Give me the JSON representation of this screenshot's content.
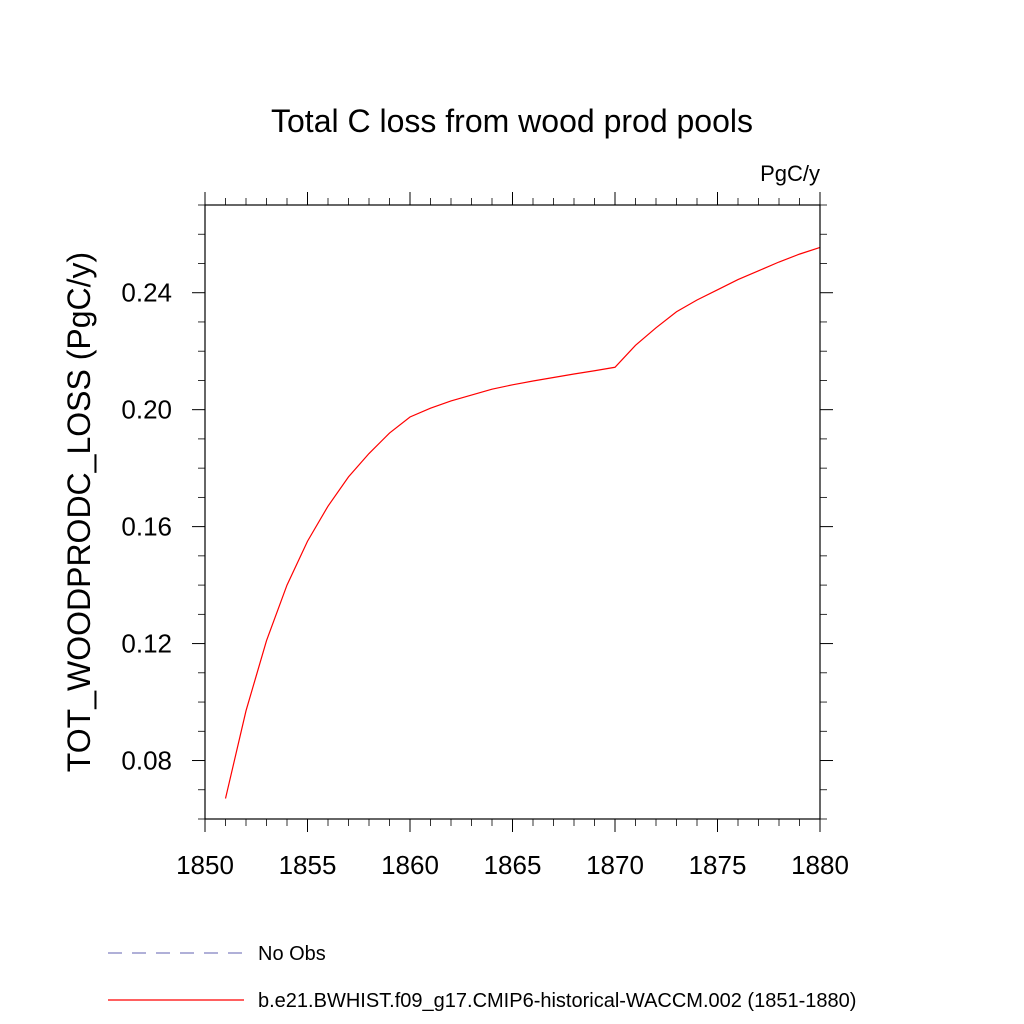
{
  "chart_data": {
    "type": "line",
    "title": "Total C loss from wood prod pools",
    "units_label": "PgC/y",
    "xlabel": "",
    "ylabel": "TOT_WOODPRODC_LOSS  (PgC/y)",
    "xlim": [
      1850,
      1880
    ],
    "ylim": [
      0.06,
      0.27
    ],
    "x_ticks": [
      1850,
      1855,
      1860,
      1865,
      1870,
      1875,
      1880
    ],
    "x_tick_labels": [
      "1850",
      "1855",
      "1860",
      "1865",
      "1870",
      "1875",
      "1880"
    ],
    "y_ticks": [
      0.08,
      0.12,
      0.16,
      0.2,
      0.24
    ],
    "y_tick_labels": [
      "0.08",
      "0.12",
      "0.16",
      "0.20",
      "0.24"
    ],
    "x_minor_step": 1,
    "y_minor_step": 0.01,
    "grid": false,
    "legend_position": "bottom-left",
    "series": [
      {
        "name": "No Obs",
        "color": "#8080c0",
        "dash": "dashed",
        "x": [],
        "values": []
      },
      {
        "name": "b.e21.BWHIST.f09_g17.CMIP6-historical-WACCM.002 (1851-1880)",
        "color": "#ff0000",
        "dash": "solid",
        "x": [
          1851,
          1852,
          1853,
          1854,
          1855,
          1856,
          1857,
          1858,
          1859,
          1860,
          1861,
          1862,
          1863,
          1864,
          1865,
          1866,
          1867,
          1868,
          1869,
          1870,
          1871,
          1872,
          1873,
          1874,
          1875,
          1876,
          1877,
          1878,
          1879,
          1880
        ],
        "values": [
          0.067,
          0.097,
          0.121,
          0.14,
          0.155,
          0.167,
          0.177,
          0.185,
          0.192,
          0.1975,
          0.2005,
          0.203,
          0.205,
          0.207,
          0.2085,
          0.2098,
          0.211,
          0.2122,
          0.2133,
          0.2145,
          0.222,
          0.228,
          0.2335,
          0.2375,
          0.241,
          0.2445,
          0.2475,
          0.2505,
          0.2532,
          0.2555
        ]
      }
    ]
  }
}
